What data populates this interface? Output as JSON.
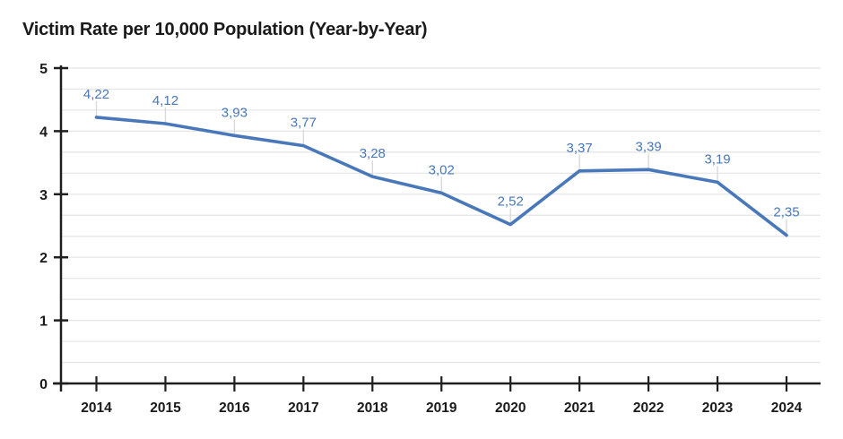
{
  "chart": {
    "title": "Victim Rate per 10,000 Population (Year-by-Year)"
  },
  "chart_data": {
    "type": "line",
    "title": "Victim Rate per 10,000 Population (Year-by-Year)",
    "categories": [
      "2014",
      "2015",
      "2016",
      "2017",
      "2018",
      "2019",
      "2020",
      "2021",
      "2022",
      "2023",
      "2024"
    ],
    "values": [
      4.22,
      4.12,
      3.93,
      3.77,
      3.28,
      3.02,
      2.52,
      3.37,
      3.39,
      3.19,
      2.35
    ],
    "value_labels": [
      "4,22",
      "4,12",
      "3,93",
      "3,77",
      "3,28",
      "3,02",
      "2,52",
      "3,37",
      "3,39",
      "3,19",
      "2,35"
    ],
    "xlabel": "",
    "ylabel": "",
    "ylim": [
      0,
      5
    ],
    "y_major_ticks": [
      "0",
      "1",
      "2",
      "3",
      "4",
      "5"
    ],
    "y_minor_gridline_interval": 0.3333,
    "grid": "horizontal-minor-on, vertical-off",
    "legend": "none",
    "decimal_separator": ",",
    "colors": {
      "line": "#4878ba",
      "data_label": "#4878ba",
      "gridline": "#e4e4e4",
      "leader_line": "#d9d9d9",
      "axis": "#1f1f1f",
      "tick_label": "#1a1a1a",
      "background": "#ffffff"
    }
  }
}
